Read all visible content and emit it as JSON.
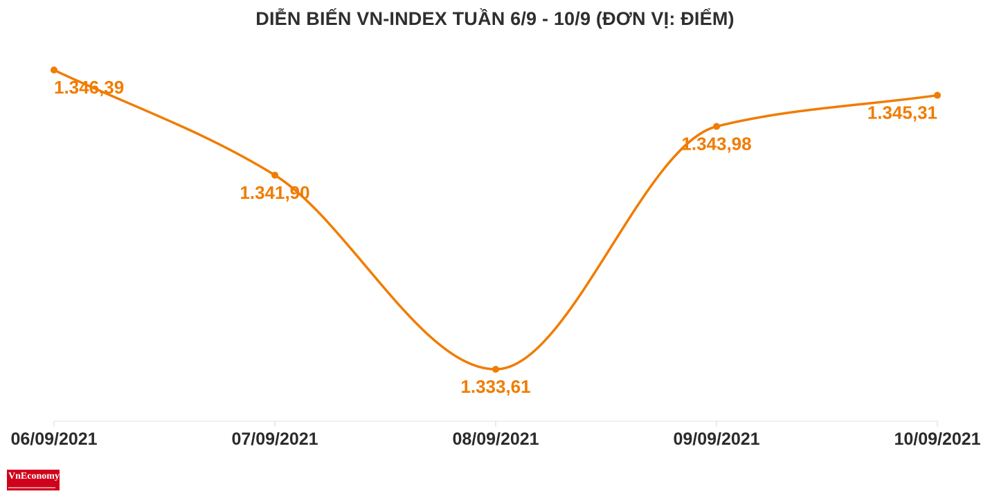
{
  "chart_data": {
    "type": "line",
    "title": "DIỄN BIẾN VN-INDEX TUẦN 6/9 - 10/9 (ĐƠN VỊ: ĐIỂM)",
    "categories": [
      "06/09/2021",
      "07/09/2021",
      "08/09/2021",
      "09/09/2021",
      "10/09/2021"
    ],
    "series": [
      {
        "values": [
          1346.39,
          1341.9,
          1333.61,
          1343.98,
          1345.31
        ],
        "labels": [
          "1.346,39",
          "1.341,90",
          "1.333,61",
          "1.343,98",
          "1.345,31"
        ],
        "color": "#f07c00"
      }
    ],
    "ylim": [
      1331.63,
      1347.9
    ],
    "grid": false,
    "legend": "none"
  },
  "brand": {
    "logo_text": "VnEconomy",
    "logo_color": "#d0021b"
  }
}
